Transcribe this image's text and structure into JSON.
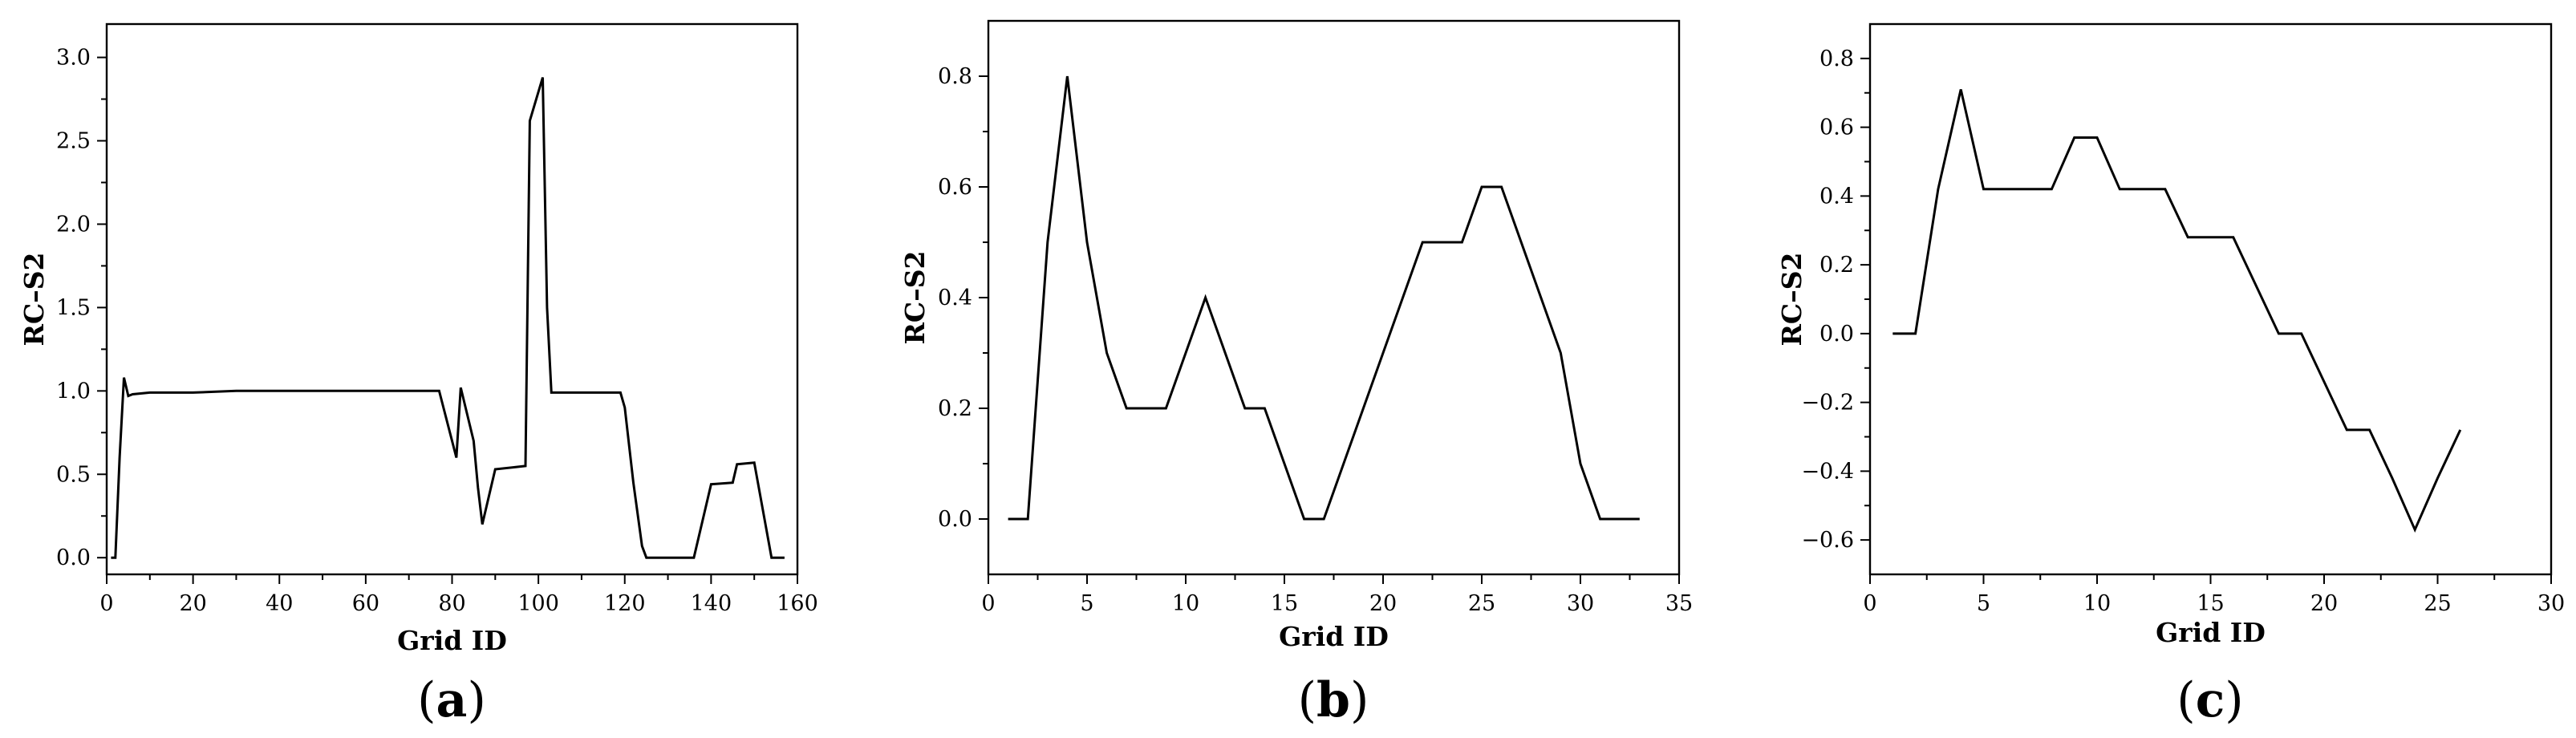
{
  "chart_data": [
    {
      "type": "line",
      "panel_label": "(a)",
      "xlabel": "Grid ID",
      "ylabel": "RC–S2",
      "xlim": [
        0,
        160
      ],
      "ylim": [
        -0.1,
        3.2
      ],
      "xticks": [
        0,
        20,
        40,
        60,
        80,
        100,
        120,
        140,
        160
      ],
      "yticks": [
        0.0,
        0.5,
        1.0,
        1.5,
        2.0,
        2.5,
        3.0
      ],
      "x_tick_labels": [
        "0",
        "20",
        "40",
        "60",
        "80",
        "100",
        "120",
        "140",
        "160"
      ],
      "y_tick_labels": [
        "0.0",
        "0.5",
        "1.0",
        "1.5",
        "2.0",
        "2.5",
        "3.0"
      ],
      "grid": false,
      "series": [
        {
          "x": [
            1,
            2,
            3,
            4,
            5,
            6,
            10,
            20,
            30,
            40,
            50,
            60,
            70,
            77,
            81,
            82,
            85,
            86,
            87,
            90,
            97,
            98,
            101,
            102,
            103,
            110,
            119,
            120,
            122,
            124,
            125,
            130,
            136,
            140,
            145,
            146,
            150,
            154,
            157
          ],
          "y": [
            0.0,
            0.0,
            0.6,
            1.08,
            0.97,
            0.98,
            0.99,
            0.99,
            1.0,
            1.0,
            1.0,
            1.0,
            1.0,
            1.0,
            0.6,
            1.02,
            0.7,
            0.42,
            0.2,
            0.53,
            0.55,
            2.62,
            2.88,
            1.5,
            0.99,
            0.99,
            0.99,
            0.9,
            0.45,
            0.07,
            0.0,
            0.0,
            0.0,
            0.44,
            0.45,
            0.56,
            0.57,
            0.0,
            0.0
          ]
        }
      ]
    },
    {
      "type": "line",
      "panel_label": "(b)",
      "xlabel": "Grid ID",
      "ylabel": "RC–S2",
      "xlim": [
        0,
        35
      ],
      "ylim": [
        -0.1,
        0.9
      ],
      "xticks": [
        0,
        5,
        10,
        15,
        20,
        25,
        30,
        35
      ],
      "yticks": [
        0.0,
        0.2,
        0.4,
        0.6,
        0.8
      ],
      "x_tick_labels": [
        "0",
        "5",
        "10",
        "15",
        "20",
        "25",
        "30",
        "35"
      ],
      "y_tick_labels": [
        "0.0",
        "0.2",
        "0.4",
        "0.6",
        "0.8"
      ],
      "grid": false,
      "series": [
        {
          "x": [
            1,
            2,
            3,
            4,
            5,
            6,
            7,
            8,
            9,
            10,
            11,
            12,
            13,
            14,
            15,
            16,
            17,
            18,
            19,
            20,
            21,
            22,
            23,
            24,
            25,
            26,
            27,
            28,
            29,
            30,
            31,
            32,
            33
          ],
          "y": [
            0.0,
            0.0,
            0.5,
            0.8,
            0.5,
            0.3,
            0.2,
            0.2,
            0.2,
            0.3,
            0.4,
            0.3,
            0.2,
            0.2,
            0.1,
            0.0,
            0.0,
            0.1,
            0.2,
            0.3,
            0.4,
            0.5,
            0.5,
            0.5,
            0.6,
            0.6,
            0.5,
            0.4,
            0.3,
            0.1,
            0.0,
            0.0,
            0.0
          ]
        }
      ]
    },
    {
      "type": "line",
      "panel_label": "(c)",
      "xlabel": "Grid ID",
      "ylabel": "RC–S2",
      "xlim": [
        0,
        30
      ],
      "ylim": [
        -0.7,
        0.9
      ],
      "xticks": [
        0,
        5,
        10,
        15,
        20,
        25,
        30
      ],
      "yticks": [
        -0.6,
        -0.4,
        -0.2,
        0.0,
        0.2,
        0.4,
        0.6,
        0.8
      ],
      "x_tick_labels": [
        "0",
        "5",
        "10",
        "15",
        "20",
        "25",
        "30"
      ],
      "y_tick_labels": [
        "−0.6",
        "−0.4",
        "−0.2",
        "0.0",
        "0.2",
        "0.4",
        "0.6",
        "0.8"
      ],
      "grid": false,
      "series": [
        {
          "x": [
            1,
            2,
            3,
            4,
            5,
            6,
            7,
            8,
            9,
            10,
            11,
            12,
            13,
            14,
            15,
            16,
            17,
            18,
            19,
            20,
            21,
            22,
            23,
            24,
            25,
            26
          ],
          "y": [
            0.0,
            0.0,
            0.42,
            0.71,
            0.42,
            0.42,
            0.42,
            0.42,
            0.57,
            0.57,
            0.42,
            0.42,
            0.42,
            0.28,
            0.28,
            0.28,
            0.14,
            0.0,
            0.0,
            -0.14,
            -0.28,
            -0.28,
            -0.42,
            -0.57,
            -0.42,
            -0.28
          ]
        }
      ]
    }
  ]
}
